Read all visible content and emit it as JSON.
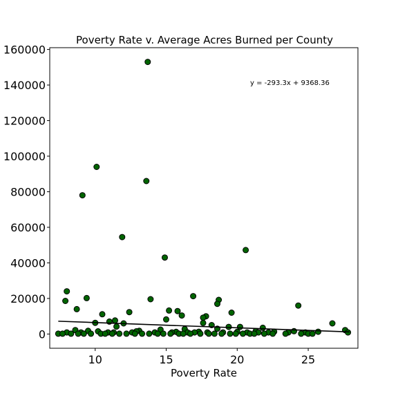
{
  "chart_data": {
    "type": "scatter",
    "title": "Poverty Rate v. Average Acres Burned per County",
    "xlabel": "Poverty Rate",
    "ylabel": "",
    "xlim": [
      6.8,
      28.5
    ],
    "ylim": [
      -8000,
      161000
    ],
    "xticks": [
      10,
      15,
      20,
      25
    ],
    "yticks": [
      0,
      20000,
      40000,
      60000,
      80000,
      100000,
      120000,
      140000,
      160000
    ],
    "grid": false,
    "annotation": "y = -293.3x + 9368.36",
    "regression": {
      "slope": -293.3,
      "intercept": 9368.36,
      "x_range": [
        7.4,
        27.9
      ]
    },
    "marker_color": "#006400",
    "marker_edge": "#000000",
    "line_color": "#000000",
    "points": [
      [
        13.7,
        153000
      ],
      [
        10.1,
        94000
      ],
      [
        13.6,
        86000
      ],
      [
        9.1,
        78000
      ],
      [
        11.9,
        54500
      ],
      [
        20.6,
        47200
      ],
      [
        14.9,
        43000
      ],
      [
        8.0,
        24000
      ],
      [
        16.9,
        21300
      ],
      [
        9.4,
        20200
      ],
      [
        13.9,
        19600
      ],
      [
        18.7,
        19200
      ],
      [
        7.9,
        18600
      ],
      [
        18.6,
        17000
      ],
      [
        24.3,
        16000
      ],
      [
        8.7,
        14000
      ],
      [
        15.2,
        13200
      ],
      [
        15.8,
        12900
      ],
      [
        12.4,
        12300
      ],
      [
        19.6,
        12000
      ],
      [
        10.5,
        11100
      ],
      [
        16.1,
        10400
      ],
      [
        17.8,
        10000
      ],
      [
        17.6,
        9200
      ],
      [
        15.0,
        8200
      ],
      [
        11.4,
        7600
      ],
      [
        11.0,
        7000
      ],
      [
        17.6,
        6200
      ],
      [
        26.7,
        6000
      ],
      [
        12.0,
        6000
      ],
      [
        10.0,
        6300
      ],
      [
        18.2,
        5000
      ],
      [
        11.5,
        4200
      ],
      [
        19.4,
        4000
      ],
      [
        20.2,
        4000
      ],
      [
        21.8,
        3500
      ],
      [
        18.6,
        3000
      ],
      [
        16.3,
        2800
      ],
      [
        14.6,
        2500
      ],
      [
        8.6,
        2200
      ],
      [
        27.6,
        2200
      ],
      [
        9.5,
        1800
      ],
      [
        13.1,
        1800
      ],
      [
        21.3,
        1600
      ],
      [
        24.0,
        1600
      ],
      [
        10.2,
        1500
      ],
      [
        12.9,
        1500
      ],
      [
        15.7,
        1200
      ],
      [
        17.3,
        1300
      ],
      [
        20.0,
        1200
      ],
      [
        22.6,
        1300
      ],
      [
        25.7,
        1300
      ],
      [
        8.0,
        900
      ],
      [
        9.0,
        900
      ],
      [
        10.9,
        900
      ],
      [
        11.3,
        900
      ],
      [
        12.6,
        900
      ],
      [
        14.2,
        900
      ],
      [
        15.4,
        900
      ],
      [
        16.5,
        900
      ],
      [
        17.0,
        900
      ],
      [
        17.9,
        900
      ],
      [
        19.0,
        900
      ],
      [
        20.7,
        900
      ],
      [
        21.5,
        900
      ],
      [
        22.2,
        900
      ],
      [
        23.6,
        900
      ],
      [
        24.8,
        900
      ],
      [
        27.8,
        900
      ],
      [
        7.4,
        200
      ],
      [
        7.7,
        200
      ],
      [
        8.3,
        200
      ],
      [
        8.8,
        200
      ],
      [
        9.2,
        200
      ],
      [
        9.7,
        200
      ],
      [
        10.4,
        200
      ],
      [
        10.7,
        200
      ],
      [
        11.2,
        200
      ],
      [
        11.7,
        200
      ],
      [
        12.2,
        200
      ],
      [
        12.8,
        200
      ],
      [
        13.3,
        200
      ],
      [
        13.8,
        200
      ],
      [
        14.4,
        200
      ],
      [
        14.8,
        200
      ],
      [
        15.3,
        200
      ],
      [
        15.9,
        200
      ],
      [
        16.2,
        200
      ],
      [
        16.7,
        200
      ],
      [
        17.4,
        200
      ],
      [
        18.0,
        200
      ],
      [
        18.4,
        200
      ],
      [
        18.9,
        200
      ],
      [
        19.5,
        200
      ],
      [
        19.9,
        200
      ],
      [
        20.4,
        200
      ],
      [
        20.9,
        200
      ],
      [
        21.2,
        200
      ],
      [
        21.9,
        200
      ],
      [
        22.5,
        200
      ],
      [
        23.4,
        200
      ],
      [
        24.5,
        200
      ],
      [
        25.0,
        200
      ],
      [
        25.3,
        200
      ]
    ]
  }
}
